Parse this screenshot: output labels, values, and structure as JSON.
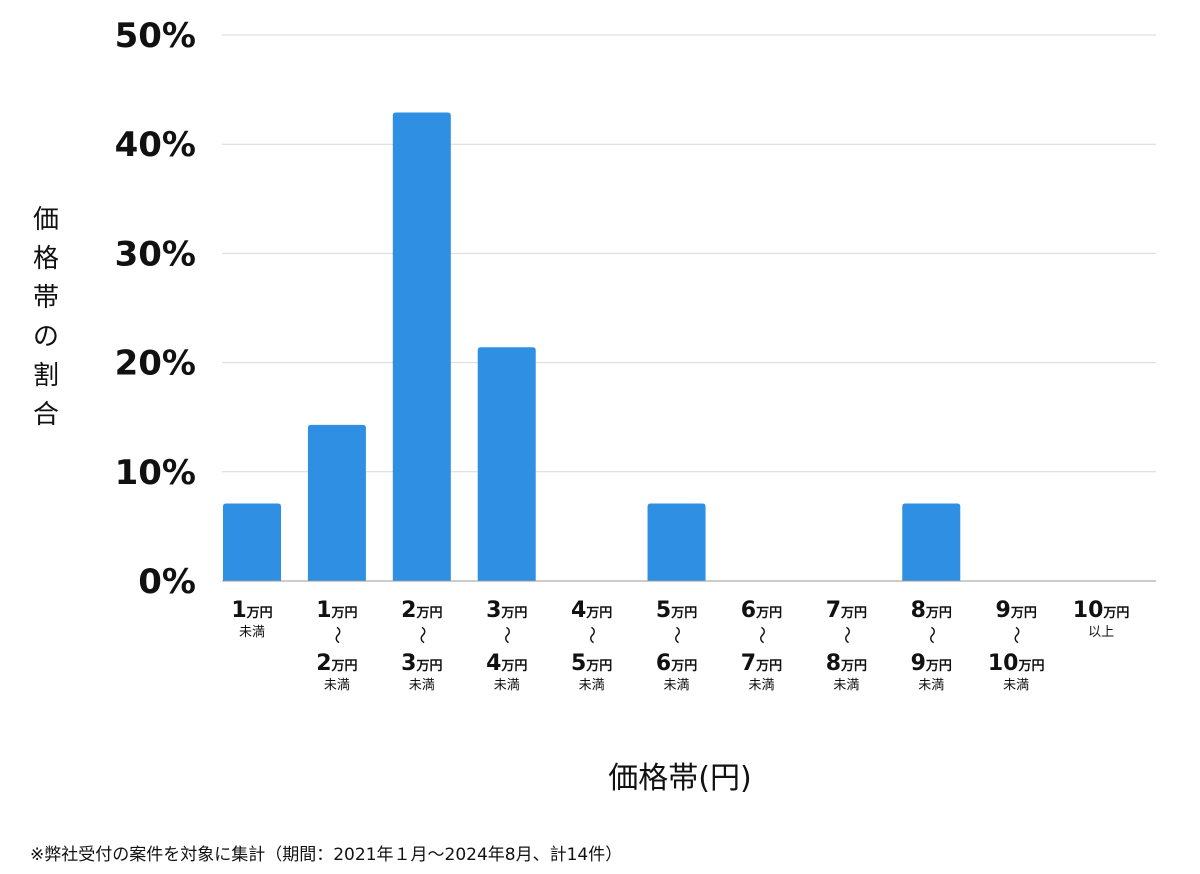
{
  "chart_data": {
    "type": "bar",
    "ylabel": "価格帯の割合",
    "xlabel": "価格帯(円)",
    "ylim": [
      0,
      50
    ],
    "yticks": [
      0,
      10,
      20,
      30,
      40,
      50
    ],
    "ytick_labels": [
      "0%",
      "10%",
      "20%",
      "30%",
      "40%",
      "50%"
    ],
    "grid": true,
    "bar_color": "#2e8fe3",
    "categories": [
      {
        "label": "1万円未満",
        "lines": [
          [
            "1",
            "万円"
          ],
          [
            "未満"
          ]
        ]
      },
      {
        "label": "1万円〜2万円未満",
        "lines": [
          [
            "1",
            "万円"
          ],
          [
            "〜"
          ],
          [
            "2",
            "万円"
          ],
          [
            "未満"
          ]
        ]
      },
      {
        "label": "2万円〜3万円未満",
        "lines": [
          [
            "2",
            "万円"
          ],
          [
            "〜"
          ],
          [
            "3",
            "万円"
          ],
          [
            "未満"
          ]
        ]
      },
      {
        "label": "3万円〜4万円未満",
        "lines": [
          [
            "3",
            "万円"
          ],
          [
            "〜"
          ],
          [
            "4",
            "万円"
          ],
          [
            "未満"
          ]
        ]
      },
      {
        "label": "4万円〜5万円未満",
        "lines": [
          [
            "4",
            "万円"
          ],
          [
            "〜"
          ],
          [
            "5",
            "万円"
          ],
          [
            "未満"
          ]
        ]
      },
      {
        "label": "5万円〜6万円未満",
        "lines": [
          [
            "5",
            "万円"
          ],
          [
            "〜"
          ],
          [
            "6",
            "万円"
          ],
          [
            "未満"
          ]
        ]
      },
      {
        "label": "6万円〜7万円未満",
        "lines": [
          [
            "6",
            "万円"
          ],
          [
            "〜"
          ],
          [
            "7",
            "万円"
          ],
          [
            "未満"
          ]
        ]
      },
      {
        "label": "7万円〜8万円未満",
        "lines": [
          [
            "7",
            "万円"
          ],
          [
            "〜"
          ],
          [
            "8",
            "万円"
          ],
          [
            "未満"
          ]
        ]
      },
      {
        "label": "8万円〜9万円未満",
        "lines": [
          [
            "8",
            "万円"
          ],
          [
            "〜"
          ],
          [
            "9",
            "万円"
          ],
          [
            "未満"
          ]
        ]
      },
      {
        "label": "9万円〜10万円未満",
        "lines": [
          [
            "9",
            "万円"
          ],
          [
            "〜"
          ],
          [
            "10",
            "万円"
          ],
          [
            "未満"
          ]
        ]
      },
      {
        "label": "10万円以上",
        "lines": [
          [
            "10",
            "万円"
          ],
          [
            "以上"
          ]
        ]
      }
    ],
    "values": [
      7.1,
      14.3,
      42.9,
      21.4,
      0,
      7.1,
      0,
      0,
      7.1,
      0,
      0
    ]
  },
  "footnote": "※弊社受付の案件を対象に集計（期間：2021年１月〜2024年8月、計14件）"
}
